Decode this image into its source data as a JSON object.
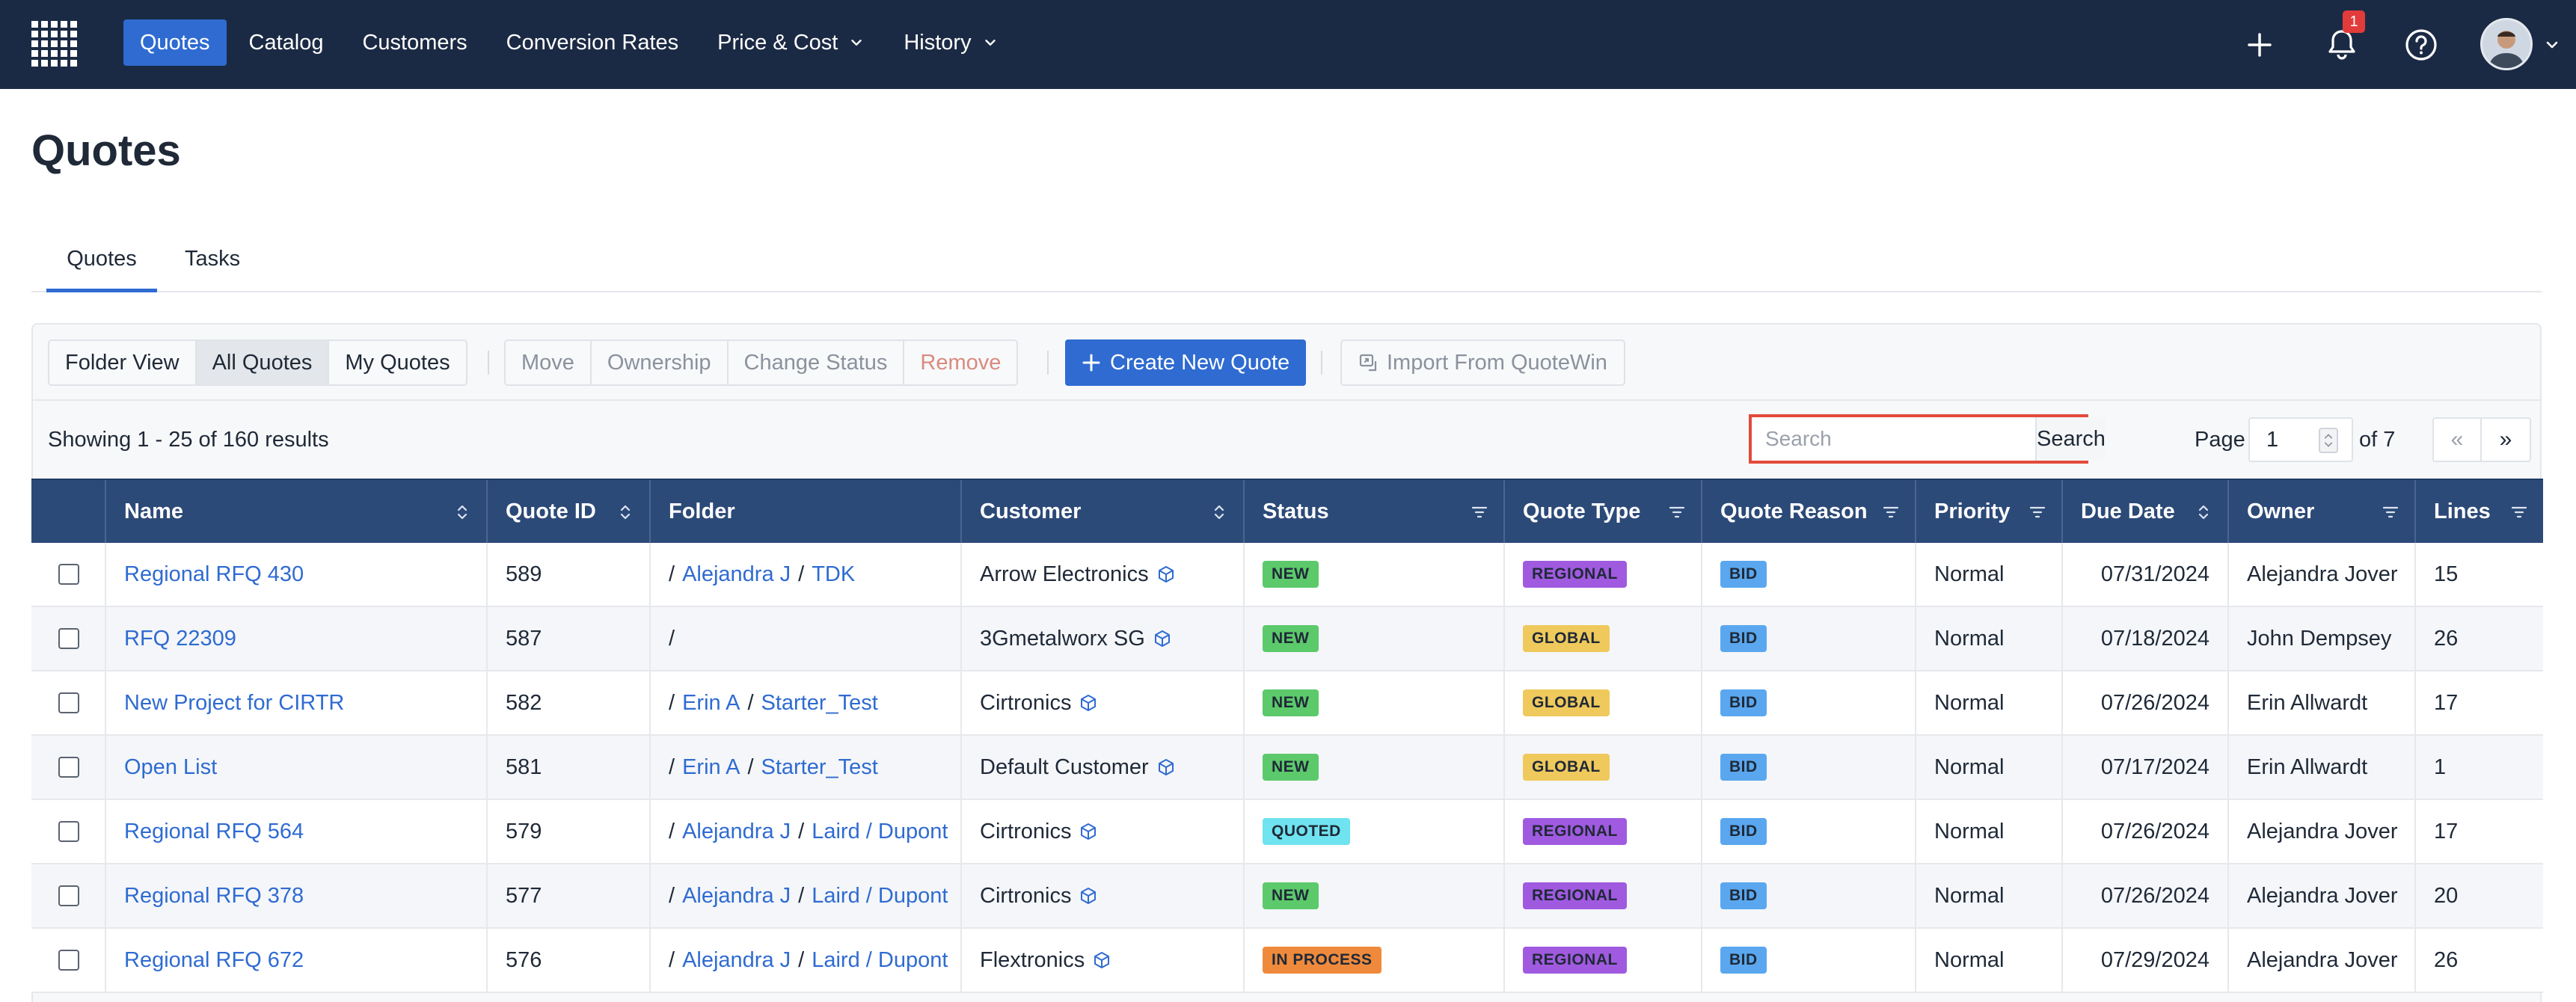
{
  "nav": {
    "items": [
      {
        "label": "Quotes",
        "active": true,
        "dropdown": false
      },
      {
        "label": "Catalog",
        "active": false,
        "dropdown": false
      },
      {
        "label": "Customers",
        "active": false,
        "dropdown": false
      },
      {
        "label": "Conversion Rates",
        "active": false,
        "dropdown": false
      },
      {
        "label": "Price & Cost",
        "active": false,
        "dropdown": true
      },
      {
        "label": "History",
        "active": false,
        "dropdown": true
      }
    ],
    "notification_count": "1"
  },
  "page": {
    "title": "Quotes"
  },
  "tabs": [
    {
      "label": "Quotes"
    },
    {
      "label": "Tasks"
    }
  ],
  "toolbar": {
    "view_buttons": [
      "Folder View",
      "All Quotes",
      "My Quotes"
    ],
    "action_buttons": [
      "Move",
      "Ownership",
      "Change Status",
      "Remove"
    ],
    "create_label": "Create New Quote",
    "import_label": "Import From QuoteWin"
  },
  "results": {
    "showing": "Showing 1 - 25 of 160 results",
    "search_placeholder": "Search",
    "search_button": "Search",
    "page_label": "Page",
    "page_value": "1",
    "of_label": "of 7",
    "prev": "«",
    "next": "»"
  },
  "table": {
    "columns": [
      "Name",
      "Quote ID",
      "Folder",
      "Customer",
      "Status",
      "Quote Type",
      "Quote Reason",
      "Priority",
      "Due Date",
      "Owner",
      "Lines"
    ],
    "rows": [
      {
        "name": "Regional RFQ 430",
        "qid": "589",
        "folder": [
          "Alejandra J",
          "TDK"
        ],
        "customer": "Arrow Electronics",
        "status": "NEW",
        "qtype": "REGIONAL",
        "qreason": "BID",
        "priority": "Normal",
        "due": "07/31/2024",
        "owner": "Alejandra Jover",
        "lines": "15"
      },
      {
        "name": "RFQ 22309",
        "qid": "587",
        "folder": [],
        "customer": "3Gmetalworx SG",
        "status": "NEW",
        "qtype": "GLOBAL",
        "qreason": "BID",
        "priority": "Normal",
        "due": "07/18/2024",
        "owner": "John Dempsey",
        "lines": "26"
      },
      {
        "name": "New Project for CIRTR",
        "qid": "582",
        "folder": [
          "Erin A",
          "Starter_Test"
        ],
        "customer": "Cirtronics",
        "status": "NEW",
        "qtype": "GLOBAL",
        "qreason": "BID",
        "priority": "Normal",
        "due": "07/26/2024",
        "owner": "Erin Allwardt",
        "lines": "17"
      },
      {
        "name": "Open List",
        "qid": "581",
        "folder": [
          "Erin A",
          "Starter_Test"
        ],
        "customer": "Default Customer",
        "status": "NEW",
        "qtype": "GLOBAL",
        "qreason": "BID",
        "priority": "Normal",
        "due": "07/17/2024",
        "owner": "Erin Allwardt",
        "lines": "1"
      },
      {
        "name": "Regional RFQ 564",
        "qid": "579",
        "folder": [
          "Alejandra J",
          "Laird / Dupont"
        ],
        "customer": "Cirtronics",
        "status": "QUOTED",
        "qtype": "REGIONAL",
        "qreason": "BID",
        "priority": "Normal",
        "due": "07/26/2024",
        "owner": "Alejandra Jover",
        "lines": "17"
      },
      {
        "name": "Regional RFQ 378",
        "qid": "577",
        "folder": [
          "Alejandra J",
          "Laird / Dupont"
        ],
        "customer": "Cirtronics",
        "status": "NEW",
        "qtype": "REGIONAL",
        "qreason": "BID",
        "priority": "Normal",
        "due": "07/26/2024",
        "owner": "Alejandra Jover",
        "lines": "20"
      },
      {
        "name": "Regional RFQ 672",
        "qid": "576",
        "folder": [
          "Alejandra J",
          "Laird / Dupont"
        ],
        "customer": "Flextronics",
        "status": "IN PROCESS",
        "qtype": "REGIONAL",
        "qreason": "BID",
        "priority": "Normal",
        "due": "07/29/2024",
        "owner": "Alejandra Jover",
        "lines": "26"
      }
    ]
  },
  "colors": {
    "navbar": "#1b2a44",
    "accent": "#2f6bd1",
    "table_header": "#2c4a78",
    "status_new": "#5cc96b",
    "status_quoted": "#6fe3ef",
    "status_in_process": "#ef8a3c",
    "type_regional": "#a05ae0",
    "type_global": "#efc95c",
    "reason_bid": "#5aa7ef",
    "search_highlight": "#e34a3a"
  }
}
